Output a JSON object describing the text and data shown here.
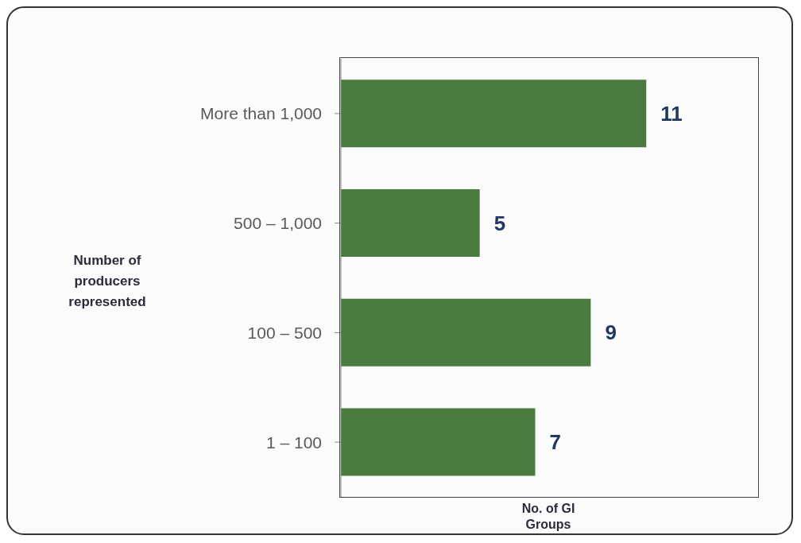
{
  "chart_data": {
    "type": "bar",
    "orientation": "horizontal",
    "xlabel": "No. of GI Groups",
    "ylabel": "Number of producers represented",
    "categories": [
      "More than 1,000",
      "500 – 1,000",
      "100 – 500",
      "1 – 100"
    ],
    "values": [
      11,
      5,
      9,
      7
    ],
    "color": "#4a7c3f",
    "xlim": [
      0,
      15
    ],
    "tick_labels": "y",
    "data_labels": true
  }
}
